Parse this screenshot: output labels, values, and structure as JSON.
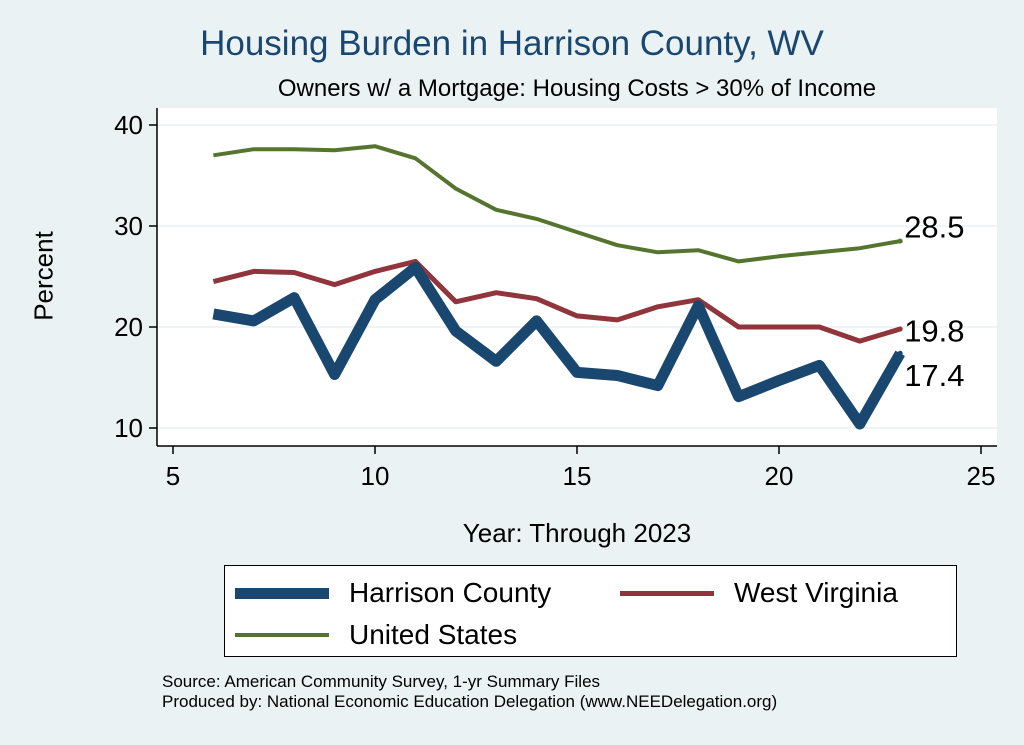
{
  "chart_data": {
    "type": "line",
    "title": "Housing Burden in Harrison County, WV",
    "subtitle": "Owners w/ a Mortgage: Housing Costs > 30% of Income",
    "xlabel": "Year: Through 2023",
    "ylabel": "Percent",
    "xlim": [
      5,
      25
    ],
    "ylim": [
      10,
      40
    ],
    "x_ticks": [
      5,
      10,
      15,
      20,
      25
    ],
    "y_ticks": [
      10,
      20,
      30,
      40
    ],
    "grid": true,
    "legend_position": "bottom",
    "series": [
      {
        "name": "Harrison County",
        "color": "#1a476f",
        "x": [
          6,
          7,
          8,
          9,
          10,
          11,
          12,
          13,
          14,
          15,
          16,
          17,
          18,
          19,
          20,
          21,
          22,
          23
        ],
        "values": [
          21.3,
          20.6,
          22.9,
          15.3,
          22.7,
          25.9,
          19.6,
          16.6,
          20.6,
          15.5,
          15.2,
          14.2,
          22.1,
          13.1,
          14.7,
          16.2,
          10.4,
          17.4
        ],
        "end_label": "17.4"
      },
      {
        "name": "West Virginia",
        "color": "#90353b",
        "x": [
          6,
          7,
          8,
          9,
          10,
          11,
          12,
          13,
          14,
          15,
          16,
          17,
          18,
          19,
          20,
          21,
          22,
          23
        ],
        "values": [
          24.5,
          25.5,
          25.4,
          24.2,
          25.5,
          26.5,
          22.5,
          23.4,
          22.8,
          21.1,
          20.7,
          22.0,
          22.7,
          20.0,
          20.0,
          20.0,
          18.6,
          19.8
        ],
        "end_label": "19.8"
      },
      {
        "name": "United States",
        "color": "#55752f",
        "x": [
          6,
          7,
          8,
          9,
          10,
          11,
          12,
          13,
          14,
          15,
          16,
          17,
          18,
          19,
          20,
          21,
          22,
          23
        ],
        "values": [
          37.0,
          37.6,
          37.6,
          37.5,
          37.9,
          36.7,
          33.7,
          31.6,
          30.7,
          29.4,
          28.1,
          27.4,
          27.6,
          26.5,
          27.0,
          27.4,
          27.8,
          28.5
        ],
        "end_label": "28.5"
      }
    ]
  },
  "notes": {
    "source": "Source: American Community Survey, 1-yr Summary Files",
    "produced_by": "Produced by: National Economic Education Delegation (www.NEEDelegation.org)"
  }
}
